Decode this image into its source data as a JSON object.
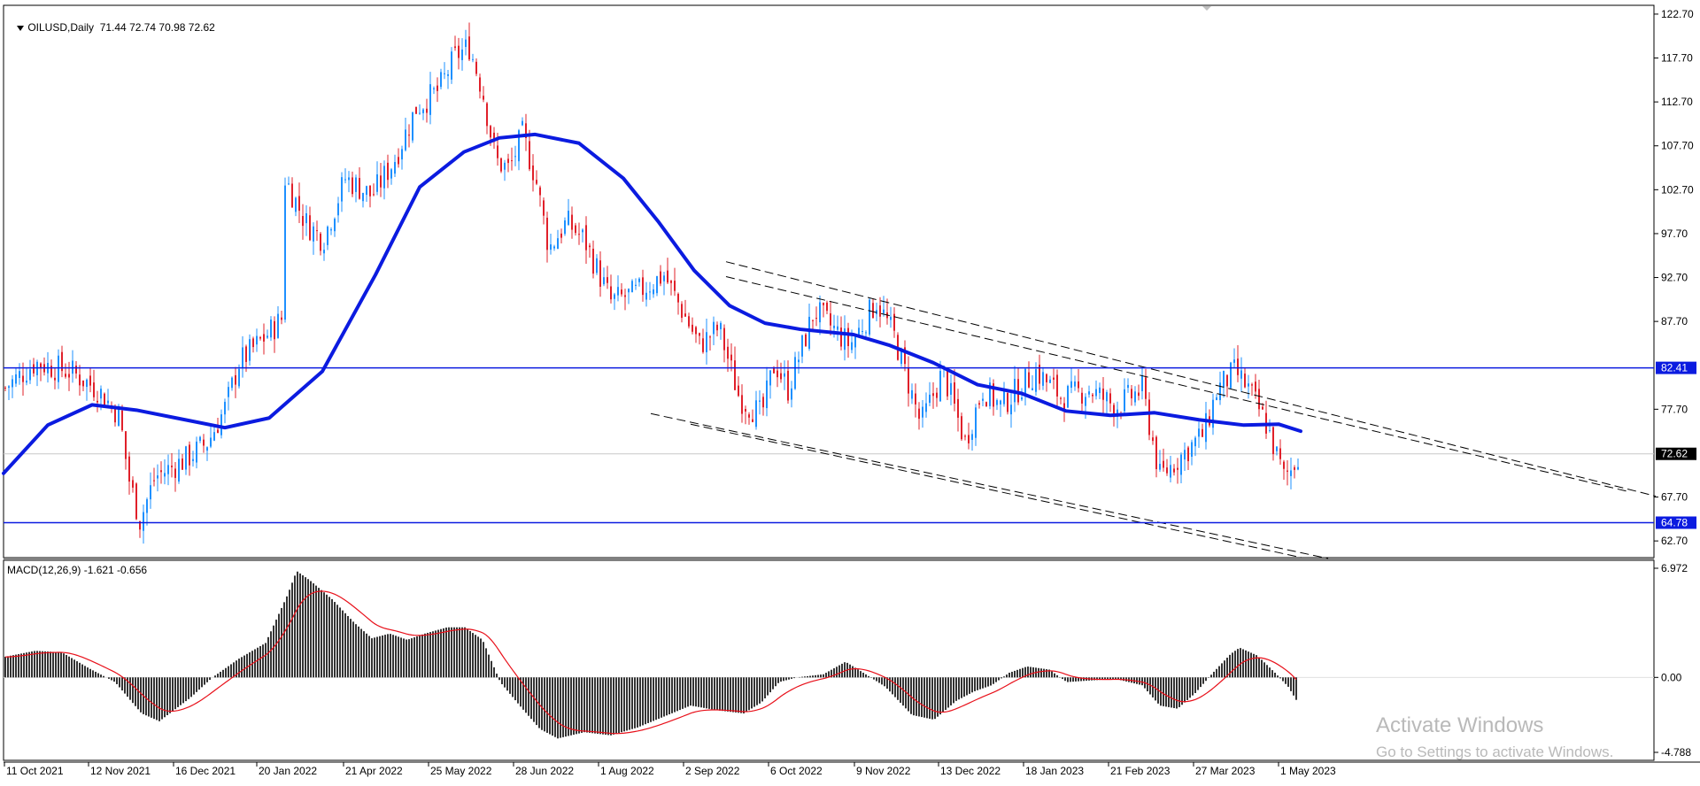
{
  "chart_header": {
    "symbol_timeframe": "OILUSD,Daily",
    "ohlc": "71.44 72.74 70.98 72.62",
    "dropdown_icon": "triangle-down-icon"
  },
  "indicator_header": {
    "label": "MACD(12,26,9) -1.621 -0.656"
  },
  "colors": {
    "bull_candle": "#1e90ff",
    "bear_candle": "#e0202a",
    "moving_average": "#0b1be0",
    "hline": "#0b1be0",
    "signal_line": "#e8101a",
    "macd_histogram": "#000000",
    "current_price_tag": "#000000",
    "level_tag": "#0b1be0"
  },
  "price_axis": {
    "labels": [
      "122.70",
      "117.70",
      "112.70",
      "107.70",
      "102.70",
      "97.70",
      "92.70",
      "87.70",
      "77.70",
      "67.70",
      "62.70"
    ],
    "level_tags": [
      "82.41",
      "64.78"
    ],
    "current_price_tag": "72.62"
  },
  "macd_axis": {
    "labels": [
      "6.972",
      "0.00",
      "-4.788"
    ]
  },
  "time_axis": {
    "labels": [
      "11 Oct 2021",
      "12 Nov 2021",
      "16 Dec 2021",
      "20 Jan 2022",
      "21 Apr 2022",
      "25 May 2022",
      "28 Jun 2022",
      "1 Aug 2022",
      "2 Sep 2022",
      "6 Oct 2022",
      "9 Nov 2022",
      "13 Dec 2022",
      "18 Jan 2023",
      "21 Feb 2023",
      "27 Mar 2023",
      "1 May 2023"
    ]
  },
  "watermark": {
    "line1": "Activate Windows",
    "line2": "Go to Settings to activate Windows."
  },
  "chart_data": {
    "type": "candlestick",
    "symbol": "OILUSD",
    "timeframe": "Daily",
    "last_bar": {
      "open": 71.44,
      "high": 72.74,
      "low": 70.98,
      "close": 72.62
    },
    "ylim": [
      61.0,
      123.5
    ],
    "horizontal_levels": [
      82.41,
      64.78
    ],
    "ma_path": [
      [
        0,
        70.4
      ],
      [
        50,
        75.9
      ],
      [
        100,
        78.2
      ],
      [
        150,
        77.6
      ],
      [
        200,
        76.6
      ],
      [
        250,
        75.6
      ],
      [
        300,
        76.7
      ],
      [
        360,
        82.0
      ],
      [
        420,
        93.0
      ],
      [
        470,
        103.0
      ],
      [
        520,
        107.0
      ],
      [
        560,
        108.6
      ],
      [
        600,
        109.0
      ],
      [
        650,
        108.0
      ],
      [
        700,
        104.0
      ],
      [
        740,
        99.0
      ],
      [
        780,
        93.5
      ],
      [
        820,
        89.5
      ],
      [
        860,
        87.5
      ],
      [
        900,
        86.8
      ],
      [
        960,
        86.2
      ],
      [
        1000,
        85.0
      ],
      [
        1050,
        83.0
      ],
      [
        1100,
        80.5
      ],
      [
        1150,
        79.5
      ],
      [
        1200,
        77.5
      ],
      [
        1250,
        77.0
      ],
      [
        1300,
        77.3
      ],
      [
        1350,
        76.5
      ],
      [
        1400,
        75.9
      ],
      [
        1440,
        76.0
      ],
      [
        1465,
        75.2
      ]
    ],
    "channel_lines": [
      {
        "from": [
          820,
          94.5
        ],
        "to": [
          1870,
          67.8
        ]
      },
      {
        "from": [
          820,
          92.8
        ],
        "to": [
          1840,
          68.3
        ]
      },
      {
        "from": [
          735,
          77.2
        ],
        "to": [
          1500,
          60.7
        ]
      },
      {
        "from": [
          780,
          76.0
        ],
        "to": [
          1470,
          60.8
        ]
      }
    ],
    "macd_ylim": [
      -4.788,
      6.972
    ],
    "macd_level": -1.621,
    "macd_signal_level": -0.656
  }
}
